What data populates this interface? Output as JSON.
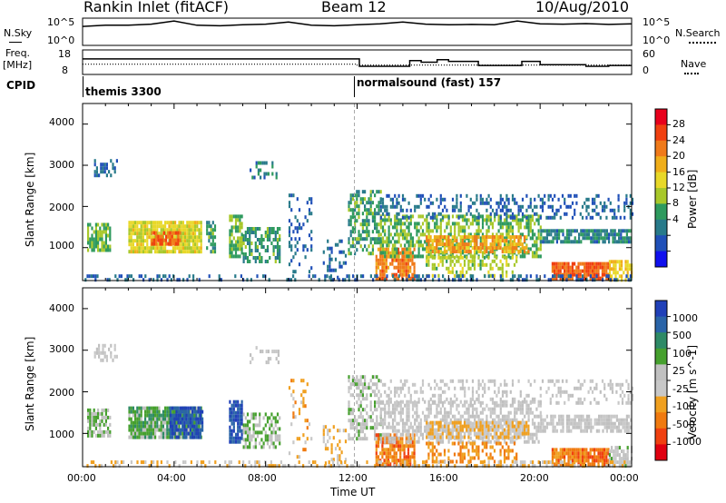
{
  "header": {
    "station": "Rankin Inlet (fitACF)",
    "beam": "Beam 12",
    "date": "10/Aug/2010"
  },
  "top_panel": {
    "left_label": "N.Sky",
    "right_label": "N.Search",
    "left_ticks": [
      "10^5",
      "10^0"
    ],
    "right_ticks": [
      "10^5",
      "10^0"
    ]
  },
  "freq_panel": {
    "left_label_1": "Freq.",
    "left_label_2": "[MHz]",
    "right_label": "Nave",
    "left_ticks": [
      "18",
      "8"
    ],
    "right_ticks": [
      "60",
      "0"
    ]
  },
  "cpid_panel": {
    "label": "CPID",
    "programs": [
      {
        "name": "themis 3300"
      },
      {
        "name": "normalsound (fast) 157"
      }
    ]
  },
  "x_axis": {
    "title": "Time UT",
    "ticks": [
      "00:00",
      "04:00",
      "08:00",
      "12:00",
      "16:00",
      "20:00",
      "00:00"
    ]
  },
  "power_panel": {
    "ylabel": "Slant Range [km]",
    "yticks": [
      "4000",
      "3000",
      "2000",
      "1000"
    ],
    "colorbar_label": "Power [dB]",
    "colorbar_ticks": [
      "28",
      "24",
      "20",
      "16",
      "12",
      "8",
      "4"
    ],
    "colors": [
      "#e8001c",
      "#f04010",
      "#f07a1a",
      "#f0ae1a",
      "#e8d828",
      "#a8c82a",
      "#2e9a5e",
      "#287a8a",
      "#2050b8",
      "#1010ee"
    ]
  },
  "velocity_panel": {
    "ylabel": "Slant Range [km]",
    "yticks": [
      "4000",
      "3000",
      "2000",
      "1000"
    ],
    "colorbar_label": "Velocity [m s^-1]",
    "colorbar_ticks": [
      "1000",
      "500",
      "100",
      "25",
      "-25",
      "-100",
      "-500",
      "-1000"
    ],
    "colors": [
      "#2040b8",
      "#2a64a8",
      "#2e8a66",
      "#46a02e",
      "#c0c0c0",
      "#c8c8c8",
      "#f0a020",
      "#f07a10",
      "#f04010",
      "#e00010"
    ]
  },
  "chart_data": [
    {
      "type": "line",
      "title": "N.Sky / N.Search",
      "x_range_hours": [
        0,
        24
      ],
      "series": [
        {
          "name": "N.Sky",
          "x": [
            0,
            1,
            2,
            3,
            4,
            5,
            6,
            7,
            8,
            9,
            10,
            11,
            12,
            13,
            14,
            15,
            16,
            17,
            18,
            19,
            20,
            21,
            22,
            23,
            24
          ],
          "values": [
            3000,
            5000,
            5000,
            8000,
            30000,
            5000,
            4000,
            6000,
            8000,
            20000,
            5000,
            4000,
            6000,
            9000,
            20000,
            8000,
            6000,
            7000,
            6000,
            30000,
            9000,
            8000,
            10000,
            7000,
            9000
          ]
        },
        {
          "name": "N.Search",
          "x": [
            0,
            24
          ],
          "values": [
            1,
            1
          ]
        }
      ]
    },
    {
      "type": "line",
      "title": "Freq. / Nave",
      "x_range_hours": [
        0,
        24
      ],
      "series": [
        {
          "name": "Freq. [MHz]",
          "x": [
            0,
            12,
            12,
            24
          ],
          "values": [
            12.2,
            12.2,
            11.8,
            11.8
          ]
        },
        {
          "name": "Nave",
          "x": [
            0,
            12,
            12.1,
            14,
            14.3,
            14.8,
            15.5,
            16,
            17.3,
            19,
            19.2,
            20,
            21,
            22,
            23,
            24
          ],
          "values": [
            38,
            38,
            20,
            20,
            34,
            30,
            36,
            32,
            22,
            22,
            32,
            24,
            24,
            20,
            22,
            22
          ]
        }
      ]
    },
    {
      "type": "heatmap",
      "title": "Power",
      "xlabel": "Time UT",
      "ylabel": "Slant Range [km]",
      "x_range_hours": [
        0,
        24
      ],
      "ylim": [
        200,
        4500
      ],
      "colorbar": {
        "label": "Power [dB]",
        "range": [
          0,
          30
        ]
      },
      "blobs": [
        {
          "t0": 0.2,
          "t1": 1.2,
          "r0": 950,
          "r1": 1600,
          "value": 12,
          "density": 0.75
        },
        {
          "t0": 0.5,
          "t1": 1.5,
          "r0": 2750,
          "r1": 3150,
          "value": 6,
          "density": 0.5
        },
        {
          "t0": 2.0,
          "t1": 5.2,
          "r0": 900,
          "r1": 1650,
          "value": 16,
          "density": 0.9
        },
        {
          "t0": 3.0,
          "t1": 4.3,
          "r0": 1050,
          "r1": 1400,
          "value": 24,
          "density": 0.8
        },
        {
          "t0": 5.4,
          "t1": 5.8,
          "r0": 900,
          "r1": 1650,
          "value": 10,
          "density": 0.6
        },
        {
          "t0": 6.4,
          "t1": 7.0,
          "r0": 800,
          "r1": 1800,
          "value": 12,
          "density": 0.8
        },
        {
          "t0": 7.0,
          "t1": 8.6,
          "r0": 700,
          "r1": 1500,
          "value": 10,
          "density": 0.6
        },
        {
          "t0": 7.3,
          "t1": 8.6,
          "r0": 2700,
          "r1": 3100,
          "value": 8,
          "density": 0.3
        },
        {
          "t0": 9.0,
          "t1": 10.0,
          "r0": 400,
          "r1": 2400,
          "value": 6,
          "density": 0.2
        },
        {
          "t0": 10.5,
          "t1": 11.5,
          "r0": 300,
          "r1": 1200,
          "value": 6,
          "density": 0.3
        },
        {
          "t0": 11.6,
          "t1": 13.0,
          "r0": 900,
          "r1": 2400,
          "value": 10,
          "density": 0.55
        },
        {
          "t0": 12.8,
          "t1": 14.5,
          "r0": 250,
          "r1": 1000,
          "value": 22,
          "density": 0.8
        },
        {
          "t0": 13.0,
          "t1": 20.0,
          "r0": 800,
          "r1": 1800,
          "value": 12,
          "density": 0.55
        },
        {
          "t0": 15.0,
          "t1": 19.5,
          "r0": 900,
          "r1": 1300,
          "value": 20,
          "density": 0.75
        },
        {
          "t0": 15.0,
          "t1": 19.0,
          "r0": 300,
          "r1": 800,
          "value": 14,
          "density": 0.45
        },
        {
          "t0": 20.0,
          "t1": 24.0,
          "r0": 1100,
          "r1": 1450,
          "value": 8,
          "density": 0.7
        },
        {
          "t0": 20.5,
          "t1": 23.0,
          "r0": 250,
          "r1": 650,
          "value": 24,
          "density": 0.9
        },
        {
          "t0": 23.0,
          "t1": 24.0,
          "r0": 250,
          "r1": 700,
          "value": 18,
          "density": 0.7
        },
        {
          "t0": 13.0,
          "t1": 24.0,
          "r0": 1700,
          "r1": 2300,
          "value": 6,
          "density": 0.3
        },
        {
          "t0": 0.0,
          "t1": 24.0,
          "r0": 200,
          "r1": 350,
          "value": 6,
          "density": 0.35
        }
      ]
    },
    {
      "type": "heatmap",
      "title": "Velocity",
      "xlabel": "Time UT",
      "ylabel": "Slant Range [km]",
      "x_range_hours": [
        0,
        24
      ],
      "ylim": [
        200,
        4500
      ],
      "colorbar": {
        "label": "Velocity [m s^-1]",
        "range": [
          -1000,
          1000
        ]
      },
      "blobs": [
        {
          "t0": 0.2,
          "t1": 1.2,
          "r0": 950,
          "r1": 1600,
          "value": 150,
          "density": 0.75
        },
        {
          "t0": 0.5,
          "t1": 1.5,
          "r0": 2750,
          "r1": 3150,
          "value": 0,
          "density": 0.5
        },
        {
          "t0": 2.0,
          "t1": 5.2,
          "r0": 900,
          "r1": 1650,
          "value": 300,
          "density": 0.9
        },
        {
          "t0": 3.8,
          "t1": 5.2,
          "r0": 900,
          "r1": 1650,
          "value": 800,
          "density": 0.8
        },
        {
          "t0": 6.4,
          "t1": 7.0,
          "r0": 800,
          "r1": 1800,
          "value": 800,
          "density": 0.8
        },
        {
          "t0": 7.0,
          "t1": 8.6,
          "r0": 700,
          "r1": 1500,
          "value": 200,
          "density": 0.6
        },
        {
          "t0": 7.3,
          "t1": 8.6,
          "r0": 2700,
          "r1": 3100,
          "value": 0,
          "density": 0.3
        },
        {
          "t0": 9.0,
          "t1": 10.0,
          "r0": 400,
          "r1": 2400,
          "value": -300,
          "density": 0.2
        },
        {
          "t0": 10.5,
          "t1": 11.5,
          "r0": 300,
          "r1": 1200,
          "value": -150,
          "density": 0.3
        },
        {
          "t0": 11.6,
          "t1": 13.0,
          "r0": 900,
          "r1": 2400,
          "value": 120,
          "density": 0.55
        },
        {
          "t0": 12.8,
          "t1": 14.5,
          "r0": 250,
          "r1": 1000,
          "value": -500,
          "density": 0.8
        },
        {
          "t0": 13.0,
          "t1": 20.0,
          "r0": 800,
          "r1": 1800,
          "value": 0,
          "density": 0.55
        },
        {
          "t0": 15.0,
          "t1": 19.5,
          "r0": 900,
          "r1": 1300,
          "value": -200,
          "density": 0.75
        },
        {
          "t0": 15.0,
          "t1": 19.0,
          "r0": 300,
          "r1": 800,
          "value": -400,
          "density": 0.45
        },
        {
          "t0": 20.0,
          "t1": 24.0,
          "r0": 1100,
          "r1": 1450,
          "value": 0,
          "density": 0.7
        },
        {
          "t0": 20.5,
          "t1": 23.0,
          "r0": 250,
          "r1": 650,
          "value": -500,
          "density": 0.9
        },
        {
          "t0": 23.0,
          "t1": 24.0,
          "r0": 250,
          "r1": 700,
          "value": 50,
          "density": 0.7
        },
        {
          "t0": 13.0,
          "t1": 24.0,
          "r0": 1700,
          "r1": 2300,
          "value": 0,
          "density": 0.3
        },
        {
          "t0": 0.0,
          "t1": 24.0,
          "r0": 200,
          "r1": 350,
          "value": -200,
          "density": 0.35
        }
      ]
    }
  ]
}
